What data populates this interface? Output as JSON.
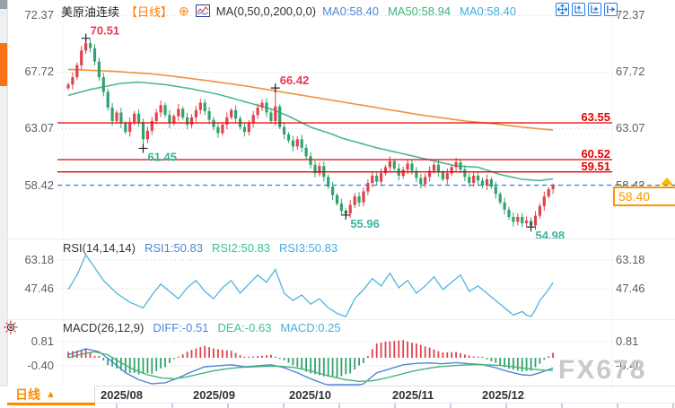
{
  "header": {
    "title": "美原油连续",
    "period_tag": "【日线】",
    "plus_icon": "⊕",
    "ma_params": "MA(0,50,0,200,0,0)",
    "ma_values": [
      {
        "text": "MA0:58.40",
        "color": "#4f86d6"
      },
      {
        "text": "MA50:58.94",
        "color": "#3eb57d"
      },
      {
        "text": "MA0:58.40",
        "color": "#41aede"
      }
    ]
  },
  "toolbar_icons": [
    "pan-icon",
    "axis-zoom-vertical-icon",
    "axis-scroll-right-icon",
    "jump-to-latest-icon"
  ],
  "bottom": {
    "tab_label": "日线",
    "tab_arrow": "▲",
    "x_labels": [
      {
        "text": "2025/08",
        "x": 112
      },
      {
        "text": "2025/09",
        "x": 215
      },
      {
        "text": "2025/10",
        "x": 322
      },
      {
        "text": "2025/11",
        "x": 437
      },
      {
        "text": "2025/12",
        "x": 537
      }
    ]
  },
  "watermark": "FX678",
  "price_tag": {
    "value": "58.40",
    "color": "#ff9500"
  },
  "colors": {
    "up": "#e0424e",
    "down": "#2fa36e",
    "ma50": "#4eb694",
    "ma200": "#f0923e",
    "level_red": "#e80000",
    "dashed_blue": "#2b7fe3",
    "grid": "#dcdcdc",
    "rsi_line": "#4fb5dc",
    "diff_line": "#4f86d6",
    "dea_line": "#46b37c",
    "marker_high": "#e8384f",
    "marker_low": "#3db39e",
    "accent_orange": "#ff8a00"
  },
  "panels": {
    "rsi": {
      "legend_title": "RSI(14,14,14)",
      "legend_items": [
        {
          "text": "RSI1:50.83",
          "color": "#4f86d6"
        },
        {
          "text": "RSI2:50.83",
          "color": "#3ec28d"
        },
        {
          "text": "RSI3:50.83",
          "color": "#45aee0"
        }
      ]
    },
    "macd": {
      "legend_title": "MACD(26,12,9)",
      "legend_items": [
        {
          "text": "DIFF:-0.51",
          "color": "#4f86d6"
        },
        {
          "text": "DEA:-0.63",
          "color": "#3ec28d"
        },
        {
          "text": "MACD:0.25",
          "color": "#45aee0"
        }
      ]
    }
  },
  "chart_data": {
    "type": "candlestick-with-indicators",
    "symbol": "美原油连续",
    "interval": "日线",
    "x_month_labels": [
      "2025/08",
      "2025/09",
      "2025/10",
      "2025/11",
      "2025/12"
    ],
    "main": {
      "y_ticks": [
        72.37,
        67.72,
        63.07,
        58.42
      ],
      "first_open": 66.4,
      "closes": [
        66.7,
        67.3,
        68.3,
        69.5,
        70.1,
        69.7,
        68.6,
        67.3,
        66.1,
        64.8,
        63.7,
        64.4,
        63.5,
        62.8,
        63.6,
        64.3,
        63.6,
        62.2,
        62.9,
        63.7,
        64.4,
        65.0,
        64.2,
        63.5,
        64.1,
        64.7,
        64.0,
        63.4,
        64.0,
        64.6,
        65.2,
        64.5,
        63.8,
        63.2,
        62.7,
        63.4,
        64.0,
        64.6,
        63.9,
        63.2,
        62.8,
        63.5,
        64.2,
        64.8,
        65.2,
        64.4,
        63.7,
        64.9,
        63.2,
        62.6,
        62.1,
        61.6,
        62.2,
        61.5,
        60.8,
        60.1,
        59.4,
        60.0,
        59.1,
        58.3,
        57.6,
        56.9,
        56.3,
        56.1,
        56.8,
        57.5,
        57.0,
        57.9,
        58.6,
        59.2,
        58.7,
        59.4,
        59.9,
        60.4,
        59.8,
        59.2,
        59.7,
        60.2,
        59.6,
        59.0,
        58.5,
        59.1,
        59.6,
        60.1,
        59.5,
        58.9,
        59.4,
        59.9,
        60.3,
        59.7,
        59.1,
        58.6,
        59.2,
        58.8,
        58.4,
        58.9,
        58.3,
        57.7,
        57.0,
        56.4,
        55.8,
        55.4,
        55.8,
        55.3,
        55.5,
        55.1,
        55.9,
        56.7,
        57.5,
        58.1,
        58.4
      ],
      "extreme_overrides": {
        "4": {
          "high": 70.51
        },
        "17": {
          "low": 61.45
        },
        "47": {
          "high": 66.42
        },
        "63": {
          "low": 55.96
        },
        "105": {
          "low": 54.98
        },
        "110": {
          "high": 58.55
        }
      },
      "markers": [
        {
          "i": 4,
          "price": 70.51,
          "text": "70.51",
          "side": "high"
        },
        {
          "i": 47,
          "price": 66.42,
          "text": "66.42",
          "side": "high"
        },
        {
          "i": 17,
          "price": 61.45,
          "text": "61.45",
          "side": "low"
        },
        {
          "i": 63,
          "price": 55.96,
          "text": "55.96",
          "side": "low"
        },
        {
          "i": 105,
          "price": 54.98,
          "text": "54.98",
          "side": "low"
        }
      ],
      "red_levels": [
        {
          "price": 63.55,
          "label": "63.55"
        },
        {
          "price": 60.52,
          "label": "60.52"
        },
        {
          "price": 59.51,
          "label": "59.51"
        }
      ],
      "dashed_level": 58.42,
      "current_price": 58.4,
      "ma50_anchors": [
        [
          0,
          65.8
        ],
        [
          5,
          66.3
        ],
        [
          12,
          66.8
        ],
        [
          16,
          66.9
        ],
        [
          22,
          66.7
        ],
        [
          28,
          66.35
        ],
        [
          34,
          65.9
        ],
        [
          40,
          65.3
        ],
        [
          46,
          64.7
        ],
        [
          50,
          64.1
        ],
        [
          55,
          63.2
        ],
        [
          60,
          62.6
        ],
        [
          62,
          62.3
        ],
        [
          66,
          61.9
        ],
        [
          70,
          61.5
        ],
        [
          76,
          61.0
        ],
        [
          82,
          60.5
        ],
        [
          88,
          60.0
        ],
        [
          93,
          59.9
        ],
        [
          98,
          59.3
        ],
        [
          103,
          58.9
        ],
        [
          107,
          58.8
        ],
        [
          110,
          58.94
        ]
      ],
      "ma200_anchors": [
        [
          0,
          67.95
        ],
        [
          10,
          67.8
        ],
        [
          20,
          67.55
        ],
        [
          30,
          67.1
        ],
        [
          40,
          66.6
        ],
        [
          50,
          66.0
        ],
        [
          60,
          65.4
        ],
        [
          70,
          64.8
        ],
        [
          80,
          64.2
        ],
        [
          90,
          63.7
        ],
        [
          96,
          63.5
        ],
        [
          103,
          63.2
        ],
        [
          110,
          62.95
        ]
      ]
    },
    "rsi": {
      "y_ticks": [
        63.18,
        47.46
      ],
      "last_values": {
        "rsi1": 50.83,
        "rsi2": 50.83,
        "rsi3": 50.83
      },
      "anchors": [
        [
          0,
          47
        ],
        [
          2,
          55
        ],
        [
          4,
          66
        ],
        [
          6,
          59
        ],
        [
          8,
          52
        ],
        [
          11,
          45
        ],
        [
          14,
          40
        ],
        [
          17,
          37
        ],
        [
          19,
          44
        ],
        [
          21,
          50
        ],
        [
          23,
          46
        ],
        [
          25,
          42
        ],
        [
          27,
          48
        ],
        [
          29,
          52
        ],
        [
          31,
          46
        ],
        [
          33,
          42
        ],
        [
          35,
          48
        ],
        [
          37,
          52
        ],
        [
          39,
          45
        ],
        [
          41,
          50
        ],
        [
          43,
          55
        ],
        [
          45,
          51
        ],
        [
          47,
          58
        ],
        [
          49,
          45
        ],
        [
          51,
          41
        ],
        [
          53,
          44
        ],
        [
          55,
          39
        ],
        [
          57,
          42
        ],
        [
          59,
          37
        ],
        [
          61,
          34
        ],
        [
          63,
          32
        ],
        [
          65,
          42
        ],
        [
          67,
          47
        ],
        [
          69,
          53
        ],
        [
          71,
          49
        ],
        [
          73,
          56
        ],
        [
          75,
          48
        ],
        [
          77,
          52
        ],
        [
          79,
          45
        ],
        [
          81,
          49
        ],
        [
          83,
          54
        ],
        [
          85,
          47
        ],
        [
          87,
          51
        ],
        [
          89,
          55
        ],
        [
          91,
          46
        ],
        [
          93,
          49
        ],
        [
          95,
          45
        ],
        [
          97,
          41
        ],
        [
          99,
          37
        ],
        [
          101,
          33
        ],
        [
          103,
          35
        ],
        [
          105,
          31
        ],
        [
          107,
          41
        ],
        [
          109,
          47
        ],
        [
          110,
          50.8
        ]
      ]
    },
    "macd": {
      "y_ticks": [
        0.81,
        -0.4
      ],
      "last_values": {
        "diff": -0.51,
        "dea": -0.63,
        "macd": 0.25
      },
      "diff_anchors": [
        [
          0,
          0.15
        ],
        [
          2,
          0.3
        ],
        [
          4,
          0.45
        ],
        [
          7,
          0.3
        ],
        [
          10,
          -0.2
        ],
        [
          13,
          -0.75
        ],
        [
          16,
          -1.1
        ],
        [
          19,
          -1.3
        ],
        [
          22,
          -1.25
        ],
        [
          25,
          -1.0
        ],
        [
          28,
          -0.7
        ],
        [
          31,
          -0.45
        ],
        [
          34,
          -0.4
        ],
        [
          37,
          -0.35
        ],
        [
          40,
          -0.45
        ],
        [
          43,
          -0.4
        ],
        [
          46,
          -0.35
        ],
        [
          49,
          -0.5
        ],
        [
          52,
          -0.75
        ],
        [
          55,
          -1.05
        ],
        [
          58,
          -1.3
        ],
        [
          61,
          -1.5
        ],
        [
          64,
          -1.52
        ],
        [
          67,
          -1.3
        ],
        [
          70,
          -0.75
        ],
        [
          73,
          -0.55
        ],
        [
          76,
          -0.35
        ],
        [
          79,
          -0.28
        ],
        [
          82,
          -0.26
        ],
        [
          85,
          -0.3
        ],
        [
          88,
          -0.24
        ],
        [
          91,
          -0.3
        ],
        [
          94,
          -0.34
        ],
        [
          97,
          -0.5
        ],
        [
          100,
          -0.7
        ],
        [
          103,
          -0.85
        ],
        [
          105,
          -0.88
        ],
        [
          107,
          -0.75
        ],
        [
          110,
          -0.51
        ]
      ],
      "dea_anchors": [
        [
          0,
          0.0
        ],
        [
          3,
          0.18
        ],
        [
          6,
          0.3
        ],
        [
          9,
          0.15
        ],
        [
          12,
          -0.25
        ],
        [
          15,
          -0.6
        ],
        [
          18,
          -0.85
        ],
        [
          21,
          -1.0
        ],
        [
          24,
          -1.05
        ],
        [
          27,
          -0.95
        ],
        [
          30,
          -0.8
        ],
        [
          33,
          -0.65
        ],
        [
          36,
          -0.55
        ],
        [
          39,
          -0.48
        ],
        [
          42,
          -0.45
        ],
        [
          45,
          -0.43
        ],
        [
          48,
          -0.42
        ],
        [
          51,
          -0.48
        ],
        [
          54,
          -0.6
        ],
        [
          57,
          -0.78
        ],
        [
          60,
          -0.95
        ],
        [
          63,
          -1.1
        ],
        [
          66,
          -1.18
        ],
        [
          69,
          -1.15
        ],
        [
          72,
          -1.02
        ],
        [
          75,
          -0.85
        ],
        [
          78,
          -0.68
        ],
        [
          81,
          -0.55
        ],
        [
          84,
          -0.45
        ],
        [
          87,
          -0.4
        ],
        [
          90,
          -0.36
        ],
        [
          93,
          -0.34
        ],
        [
          96,
          -0.36
        ],
        [
          99,
          -0.4
        ],
        [
          102,
          -0.48
        ],
        [
          105,
          -0.56
        ],
        [
          108,
          -0.62
        ],
        [
          110,
          -0.63
        ]
      ]
    }
  }
}
